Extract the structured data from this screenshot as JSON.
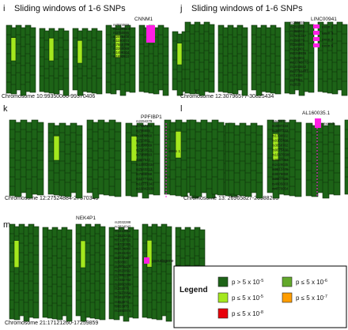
{
  "panels": [
    {
      "letter": "i",
      "title": "Sliding windows of 1-6 SNPs",
      "gene": "CNNM1",
      "chromosome": "Chromosome 10:99350066-99370406",
      "snps": [
        "rs7074815",
        "rs11190605",
        "rs3750895",
        "rs2078408",
        "rs1190074",
        "rs7568778",
        "rs2268069",
        "rs1499304",
        "rs1892910"
      ],
      "annotations": []
    },
    {
      "letter": "j",
      "title": "Sliding windows of 1-6 SNPs",
      "gene": "LINC00941",
      "chromosome": "Chromosome 12:30796577-30825434",
      "snps": [
        "rs256655",
        "rs256659",
        "rs256662",
        "rs7501387",
        "rs256679",
        "rs256664",
        "rs243401",
        "rs2259136",
        "rs264904",
        "rs1074377S",
        "rs1843842",
        "rs10761481",
        "rs71049",
        "rs37891",
        "rs2820"
      ],
      "annotations": [
        "exon 2",
        "exon 3",
        "exon 4",
        "exon 5"
      ]
    },
    {
      "letter": "k",
      "title": "",
      "gene": "PPFIBP1",
      "chromosome": "Chromosome 12:27524884-27570343",
      "snps": [
        "rs2254279",
        "rs7597294",
        "rs796655",
        "rs3809860",
        "rs753891",
        "rs1890069",
        "rs7963570",
        "rs7966993",
        "rs987547",
        "rs10842034",
        "rs7843213",
        "rs7966058",
        "rs1077343",
        "rs10771343",
        "rs10842938"
      ],
      "annotations": [
        "intron 1"
      ]
    },
    {
      "letter": "l",
      "title": "",
      "gene": "AL160035.1",
      "chromosome": "Chromosome 13: 26965827-26988205",
      "snps": [
        "rs649072",
        "rs3897234",
        "rs3897233",
        "rs1708502",
        "rs9102468",
        "rs3858762",
        "rs9075430",
        "rs10875586",
        "rs9587094",
        "rs2429035",
        "rs9512476",
        "rs9579058",
        "rs9507825",
        "rs4605003",
        "rs4770054"
      ],
      "annotations": [
        "exon 3"
      ]
    },
    {
      "letter": "m",
      "title": "",
      "gene": "NEK4P1",
      "chromosome": "Chromosome 21:17121260-17259859",
      "snps": [
        "rs2032288",
        "rs2824042",
        "rs1810562",
        "rs2824245",
        "rs7120722",
        "rs9702385",
        "rs2824249",
        "rs2824253",
        "rs3047197",
        "rs50880",
        "rs4604416",
        "rs2820892",
        "rs7282090",
        "rs7282792",
        "rs2202901",
        "rs202875",
        "rs7973964",
        "rs4816748",
        "rs853972",
        "rs853973",
        "rs1692974"
      ],
      "annotations": [
        "pseudogene"
      ]
    }
  ],
  "legend": {
    "title": "Legend",
    "items": [
      {
        "label": "p > 5 x 10",
        "exp": "-5",
        "color": "#1d6317"
      },
      {
        "label": "p ≤ 5 x 10",
        "exp": "-6",
        "color": "#62a82b"
      },
      {
        "label": "p ≤ 5 x 10",
        "exp": "-5",
        "color": "#a4e81e"
      },
      {
        "label": "p ≤ 5 x 10",
        "exp": "-7",
        "color": "#ff9d00"
      },
      {
        "label": "p ≤ 5 x 10",
        "exp": "-8",
        "color": "#e8000a"
      }
    ]
  },
  "colors": {
    "dark_green": "#1d6317",
    "light_green": "#a4e81e",
    "mid_green": "#62a82b",
    "orange": "#ff9d00",
    "red": "#e8000a",
    "magenta": "#ff1ee3",
    "outline": "#0b2a08"
  }
}
